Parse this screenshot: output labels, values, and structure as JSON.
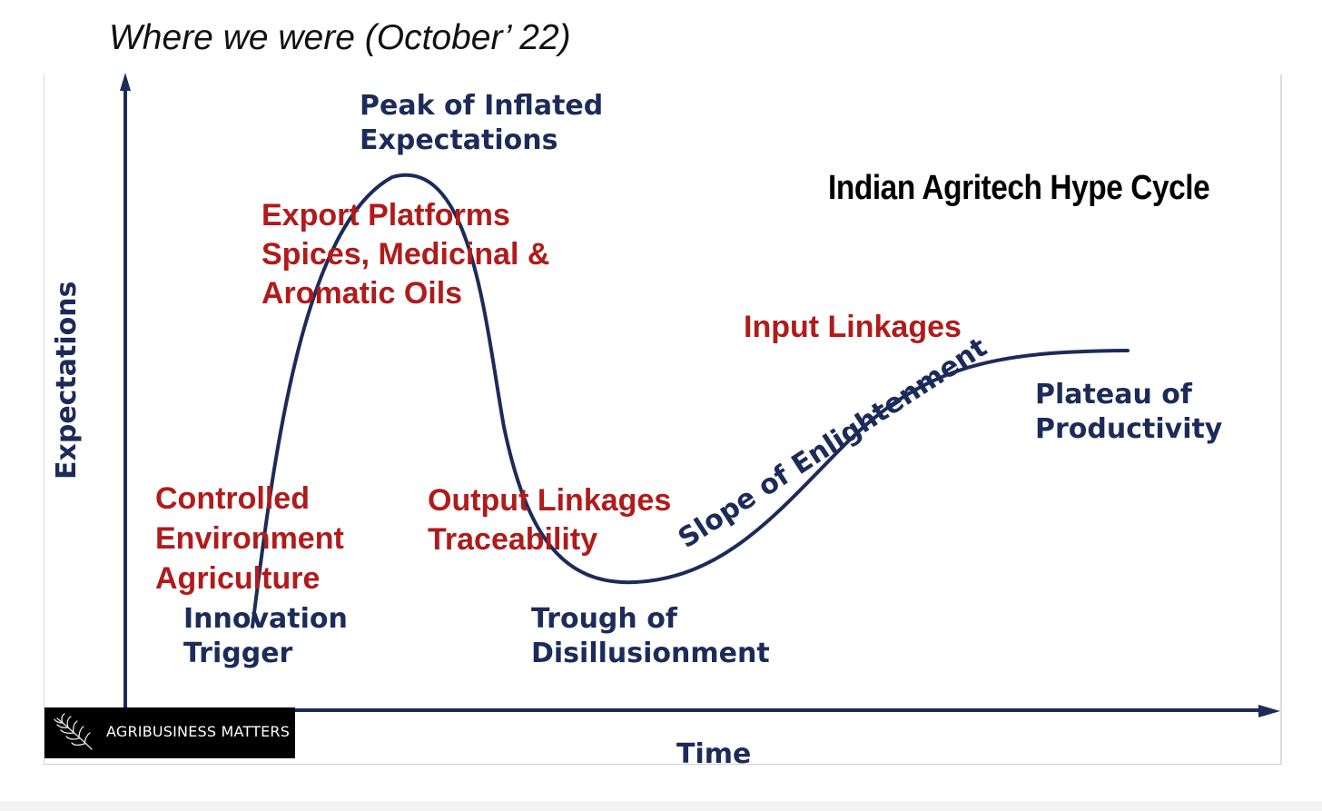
{
  "heading": "Where we were (October’ 22)",
  "diagram": {
    "title": "Indian Agritech Hype Cycle",
    "y_axis_label": "Expectations",
    "x_axis_label": "Time",
    "phases": {
      "innovation_trigger": [
        "Innovation",
        "Trigger"
      ],
      "peak": [
        "Peak of Inflated",
        "Expectations"
      ],
      "trough": [
        "Trough of",
        "Disillusionment"
      ],
      "slope": "Slope of Enlightenment",
      "plateau": [
        "Plateau of",
        "Productivity"
      ]
    },
    "technologies": {
      "cea": [
        "Controlled",
        "Environment",
        "Agriculture"
      ],
      "export": [
        "Export Platforms",
        "Spices, Medicinal &",
        "Aromatic Oils"
      ],
      "output": [
        "Output Linkages",
        "Traceability"
      ],
      "input": "Input Linkages"
    },
    "colors": {
      "curve": "#1c2b59",
      "phase_text": "#1c2b59",
      "technology_text": "#b01b1b",
      "title_text": "#000000"
    }
  },
  "watermark": {
    "text": "AGRIBUSINESS MATTERS",
    "icon": "leaf-icon"
  }
}
